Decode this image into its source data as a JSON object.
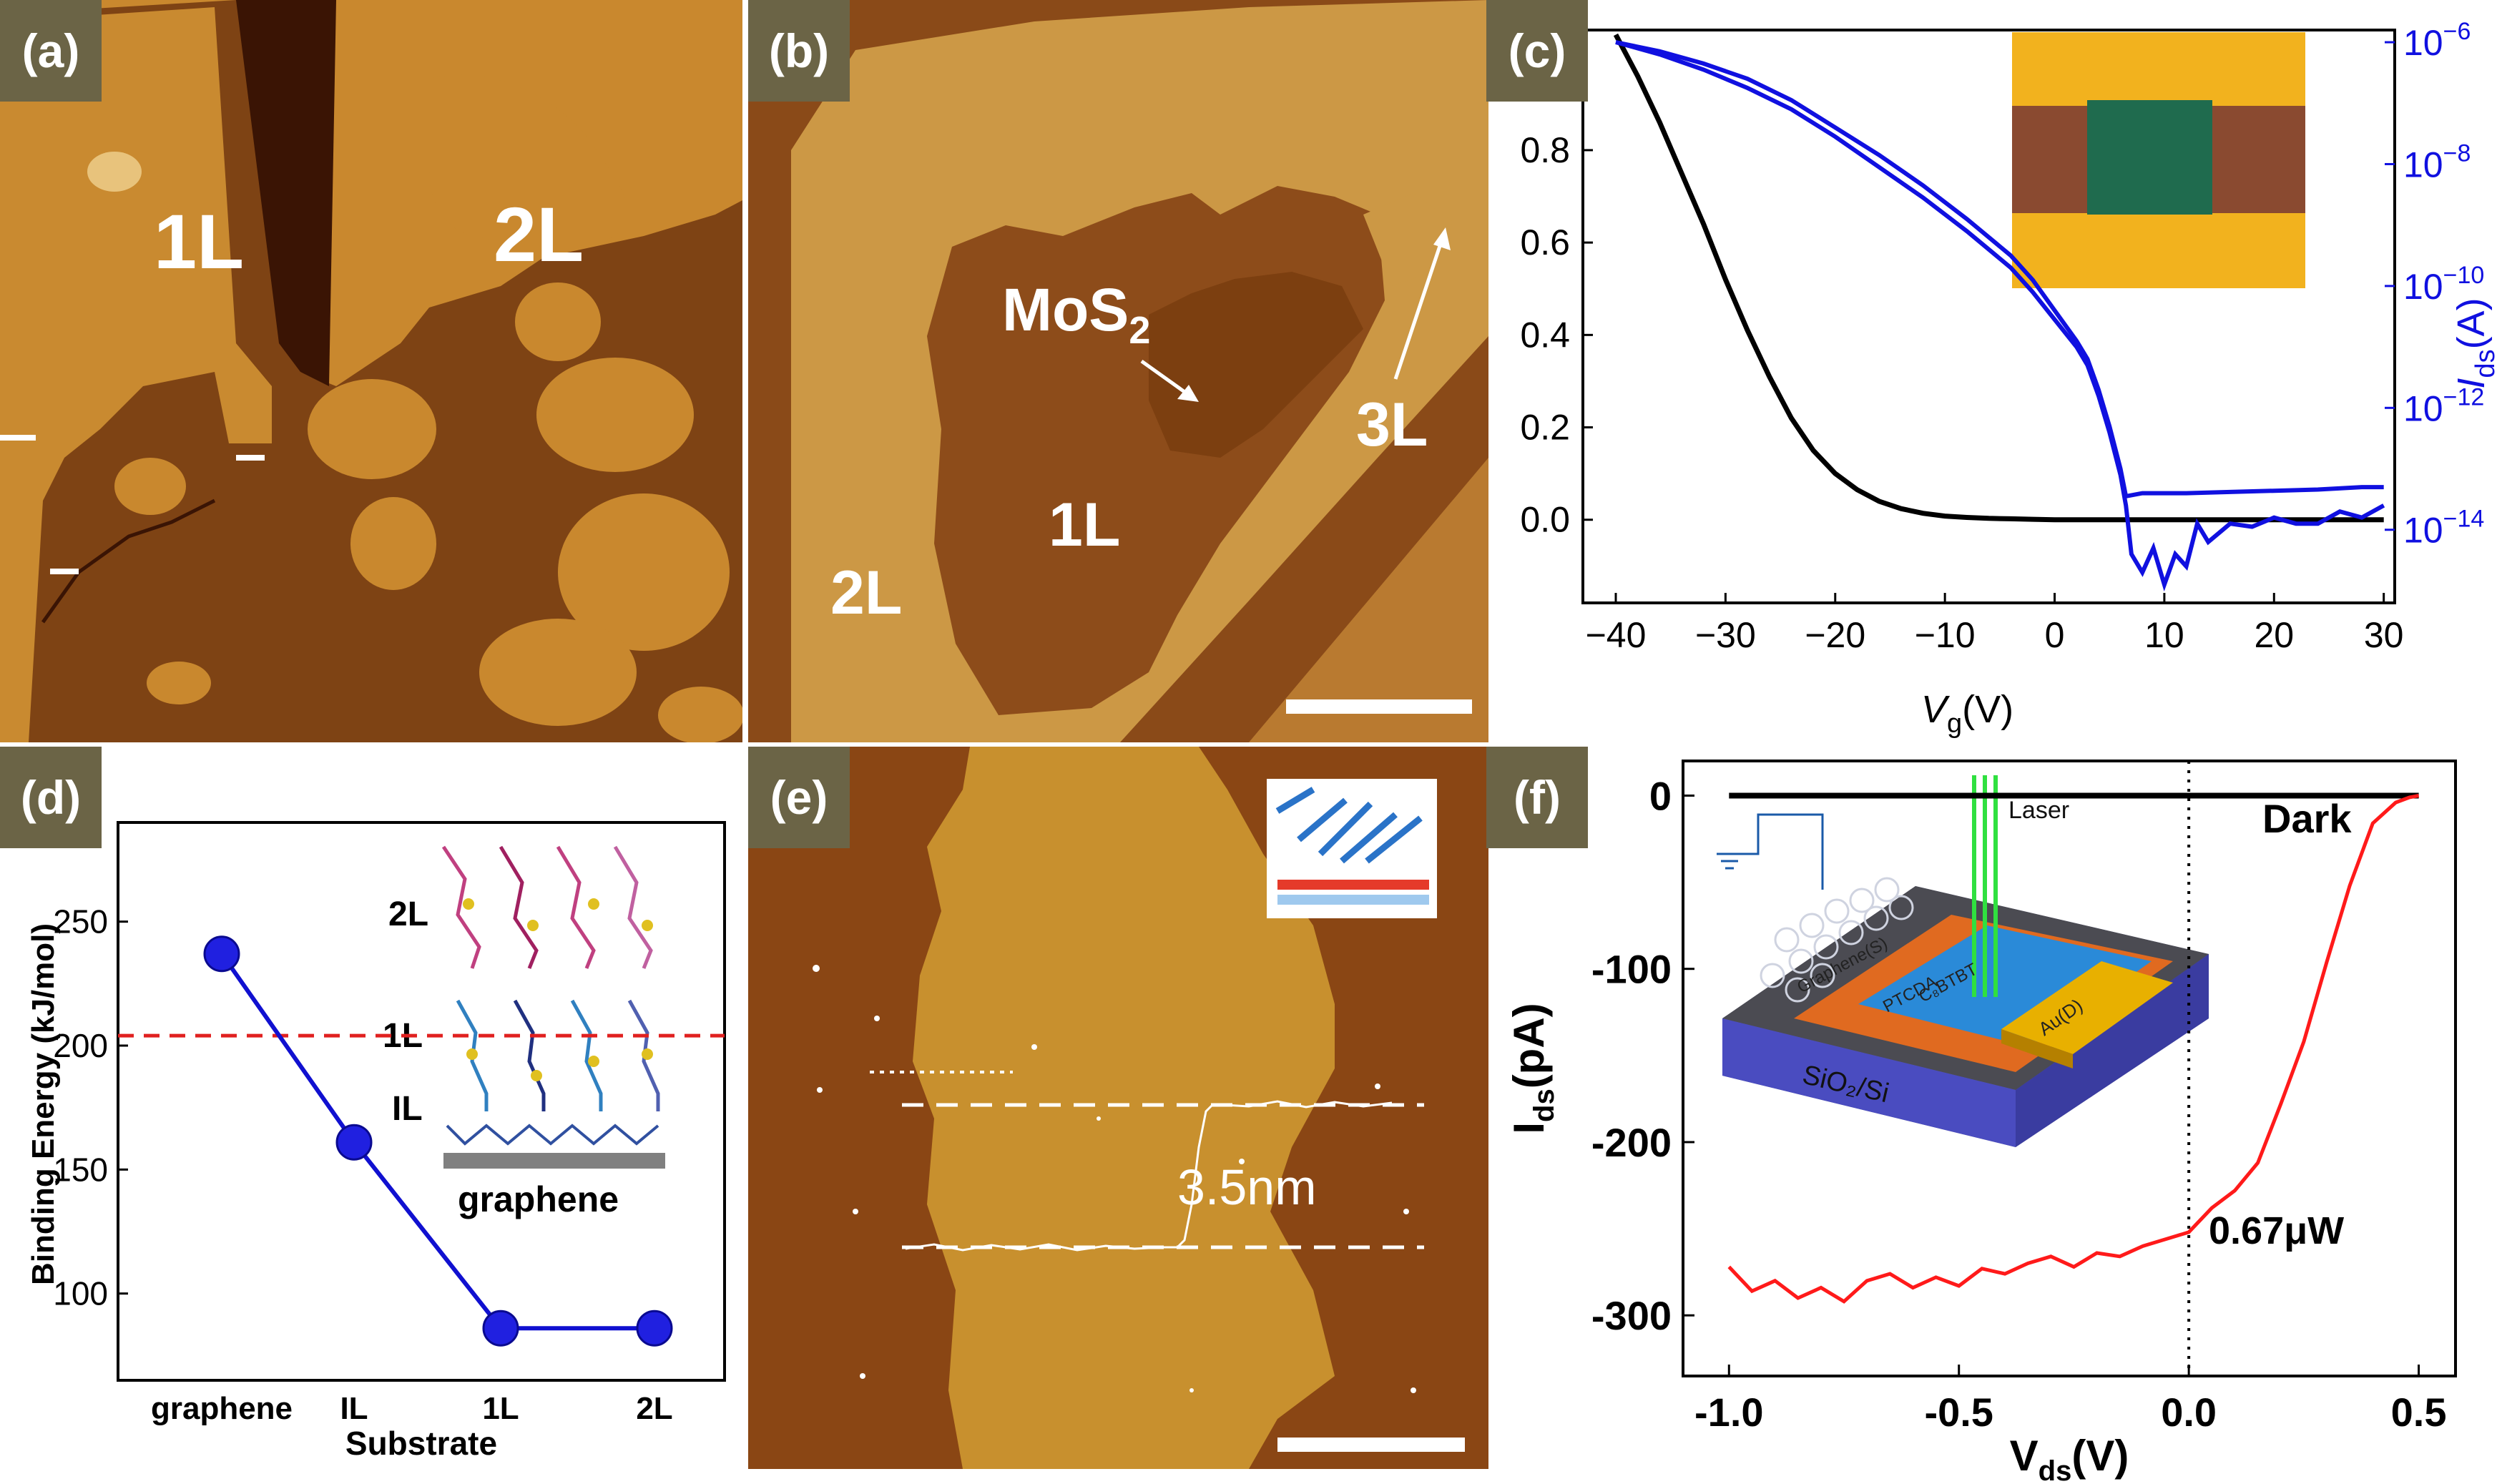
{
  "panels": {
    "a": {
      "tag": "(a)",
      "labels": {
        "one_layer": "1L",
        "two_layer": "2L"
      }
    },
    "b": {
      "tag": "(b)",
      "labels": {
        "material": "MoS",
        "material_sub": "2",
        "one_layer": "1L",
        "two_layer": "2L",
        "three_layer": "3L"
      }
    },
    "c": {
      "tag": "(c)"
    },
    "d": {
      "tag": "(d)",
      "inset_labels": {
        "two_layer": "2L",
        "one_layer": "1L",
        "interface_layer": "IL",
        "substrate": "graphene"
      }
    },
    "e": {
      "tag": "(e)",
      "step_height": "3.5nm"
    },
    "f": {
      "tag": "(f)",
      "inset": {
        "graphene": "Graphene(S)",
        "ptcda": "PTCDA",
        "c8btbt": "C₈BTBT",
        "gold": "Au(D)",
        "substrate": "SiO₂/Si",
        "laser": "Laser"
      }
    }
  },
  "chart_data": [
    {
      "panel": "c",
      "type": "line",
      "xlabel": "V",
      "xlabel_sub": "g",
      "xlabel_unit": "(V)",
      "xlim": [
        -43,
        31
      ],
      "x_ticks": [
        -40,
        -30,
        -20,
        -10,
        0,
        10,
        20,
        30
      ],
      "x_tick_labels": [
        "−40",
        "−30",
        "−20",
        "−10",
        "0",
        "10",
        "20",
        "30"
      ],
      "ylim": [
        -0.18,
        1.06
      ],
      "y_ticks": [
        0.0,
        0.2,
        0.4,
        0.6,
        0.8
      ],
      "y_tick_labels": [
        "0.0",
        "0.2",
        "0.4",
        "0.6",
        "0.8"
      ],
      "y2_label": "I",
      "y2_label_sub": "ds",
      "y2_label_unit": "(A)",
      "y2_log_range": [
        -15.2,
        -5.8
      ],
      "y2_ticks": [
        -6,
        -8,
        -10,
        -12,
        -14
      ],
      "y2_tick_bases": [
        "10",
        "10",
        "10",
        "10",
        "10"
      ],
      "y2_tick_exps": [
        "−6",
        "−8",
        "−10",
        "−12",
        "−14"
      ],
      "series": [
        {
          "name": "linear",
          "color": "#000000",
          "axis": "left",
          "x": [
            -40,
            -38,
            -36,
            -34,
            -32,
            -30,
            -28,
            -26,
            -24,
            -22,
            -20,
            -18,
            -16,
            -14,
            -12,
            -10,
            -8,
            -6,
            -4,
            -2,
            0,
            10,
            20,
            30
          ],
          "y": [
            1.05,
            0.96,
            0.86,
            0.75,
            0.64,
            0.52,
            0.41,
            0.31,
            0.22,
            0.15,
            0.1,
            0.065,
            0.04,
            0.024,
            0.014,
            0.008,
            0.005,
            0.003,
            0.002,
            0.001,
            0.0,
            0.0,
            0.0,
            0.0
          ]
        },
        {
          "name": "log_forward",
          "color": "#1010e0",
          "axis": "right",
          "x": [
            -40,
            -36,
            -32,
            -28,
            -24,
            -20,
            -16,
            -12,
            -8,
            -4,
            -2,
            0,
            2,
            3,
            4,
            5,
            6,
            6.5,
            8,
            12,
            16,
            20,
            24,
            28,
            30
          ],
          "y": [
            -6.0,
            -6.15,
            -6.35,
            -6.6,
            -6.95,
            -7.4,
            -7.85,
            -8.35,
            -8.9,
            -9.5,
            -9.9,
            -10.4,
            -10.9,
            -11.2,
            -11.7,
            -12.3,
            -13.0,
            -13.45,
            -13.4,
            -13.4,
            -13.38,
            -13.36,
            -13.34,
            -13.3,
            -13.3
          ]
        },
        {
          "name": "log_reverse",
          "color": "#1010e0",
          "axis": "right",
          "x": [
            -40,
            -36,
            -32,
            -28,
            -24,
            -20,
            -16,
            -12,
            -8,
            -4,
            -2,
            0,
            2,
            3,
            4,
            5,
            6,
            6.5,
            7,
            8,
            9,
            10,
            11,
            12,
            13,
            14,
            16,
            18,
            20,
            22,
            24,
            26,
            28,
            30
          ],
          "y": [
            -6.0,
            -6.2,
            -6.45,
            -6.75,
            -7.1,
            -7.55,
            -8.05,
            -8.55,
            -9.1,
            -9.7,
            -10.1,
            -10.55,
            -11.0,
            -11.3,
            -11.8,
            -12.4,
            -13.1,
            -13.6,
            -14.4,
            -14.7,
            -14.3,
            -14.9,
            -14.4,
            -14.6,
            -13.9,
            -14.2,
            -13.9,
            -13.95,
            -13.8,
            -13.9,
            -13.9,
            -13.7,
            -13.8,
            -13.6
          ]
        }
      ]
    },
    {
      "panel": "d",
      "type": "line",
      "xlabel": "Substrate",
      "ylabel": "Binding Energy (kJ/mol)",
      "categories": [
        "graphene",
        "IL",
        "1L",
        "2L"
      ],
      "values": [
        237,
        161,
        86,
        86
      ],
      "reference_line": 204,
      "ylim": [
        65,
        290
      ],
      "y_ticks": [
        100,
        150,
        200,
        250
      ],
      "y_tick_labels": [
        "100",
        "150",
        "200",
        "250"
      ]
    },
    {
      "panel": "f",
      "type": "line",
      "xlabel": "V",
      "xlabel_sub": "ds",
      "xlabel_unit": "(V)",
      "ylabel": "I",
      "ylabel_sub": "ds",
      "ylabel_unit": "(pA)",
      "xlim": [
        -1.1,
        0.58
      ],
      "ylim": [
        -335,
        20
      ],
      "x_ticks": [
        -1.0,
        -0.5,
        0.0,
        0.5
      ],
      "x_tick_labels": [
        "-1.0",
        "-0.5",
        "0.0",
        "0.5"
      ],
      "y_ticks": [
        0,
        -100,
        -200,
        -300
      ],
      "y_tick_labels": [
        "0",
        "-100",
        "-200",
        "-300"
      ],
      "annotations": {
        "dark": "Dark",
        "power": "0.67μW"
      },
      "series": [
        {
          "name": "Dark",
          "color": "#000000",
          "x": [
            -1.0,
            0.5
          ],
          "y": [
            0,
            0
          ]
        },
        {
          "name": "0.67μW",
          "color": "#ff1a1a",
          "x": [
            -1.0,
            -0.95,
            -0.9,
            -0.85,
            -0.8,
            -0.75,
            -0.7,
            -0.65,
            -0.6,
            -0.55,
            -0.5,
            -0.45,
            -0.4,
            -0.35,
            -0.3,
            -0.25,
            -0.2,
            -0.15,
            -0.1,
            -0.05,
            0.0,
            0.05,
            0.1,
            0.15,
            0.2,
            0.25,
            0.3,
            0.35,
            0.4,
            0.45,
            0.48,
            0.5
          ],
          "y": [
            -272,
            -286,
            -280,
            -290,
            -284,
            -292,
            -280,
            -276,
            -284,
            -278,
            -283,
            -273,
            -276,
            -270,
            -266,
            -272,
            -264,
            -266,
            -260,
            -256,
            -252,
            -238,
            -228,
            -212,
            -178,
            -142,
            -96,
            -52,
            -16,
            -4,
            -1,
            0
          ]
        }
      ]
    }
  ]
}
